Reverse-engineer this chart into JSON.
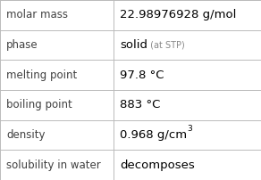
{
  "rows": [
    {
      "label": "molar mass",
      "value": "22.98976928 g/mol",
      "value_parts": null
    },
    {
      "label": "phase",
      "value": null,
      "value_parts": [
        {
          "text": "solid",
          "bold": false,
          "fontsize": 9.5
        },
        {
          "text": " (at STP)",
          "bold": false,
          "fontsize": 7.0,
          "color": "#888888"
        }
      ]
    },
    {
      "label": "melting point",
      "value": "97.8 °C",
      "value_parts": null
    },
    {
      "label": "boiling point",
      "value": "883 °C",
      "value_parts": null
    },
    {
      "label": "density",
      "value": null,
      "value_parts": [
        {
          "text": "0.968 g/cm",
          "bold": false,
          "fontsize": 9.5
        },
        {
          "text": "3",
          "bold": false,
          "fontsize": 6.5,
          "super": true
        }
      ]
    },
    {
      "label": "solubility in water",
      "value": "decomposes",
      "value_parts": null
    }
  ],
  "background_color": "#ffffff",
  "border_color": "#bbbbbb",
  "label_color": "#404040",
  "value_color": "#000000",
  "label_fontsize": 8.5,
  "value_fontsize": 9.5,
  "col_split": 0.435,
  "fig_width": 2.92,
  "fig_height": 2.02,
  "dpi": 100
}
